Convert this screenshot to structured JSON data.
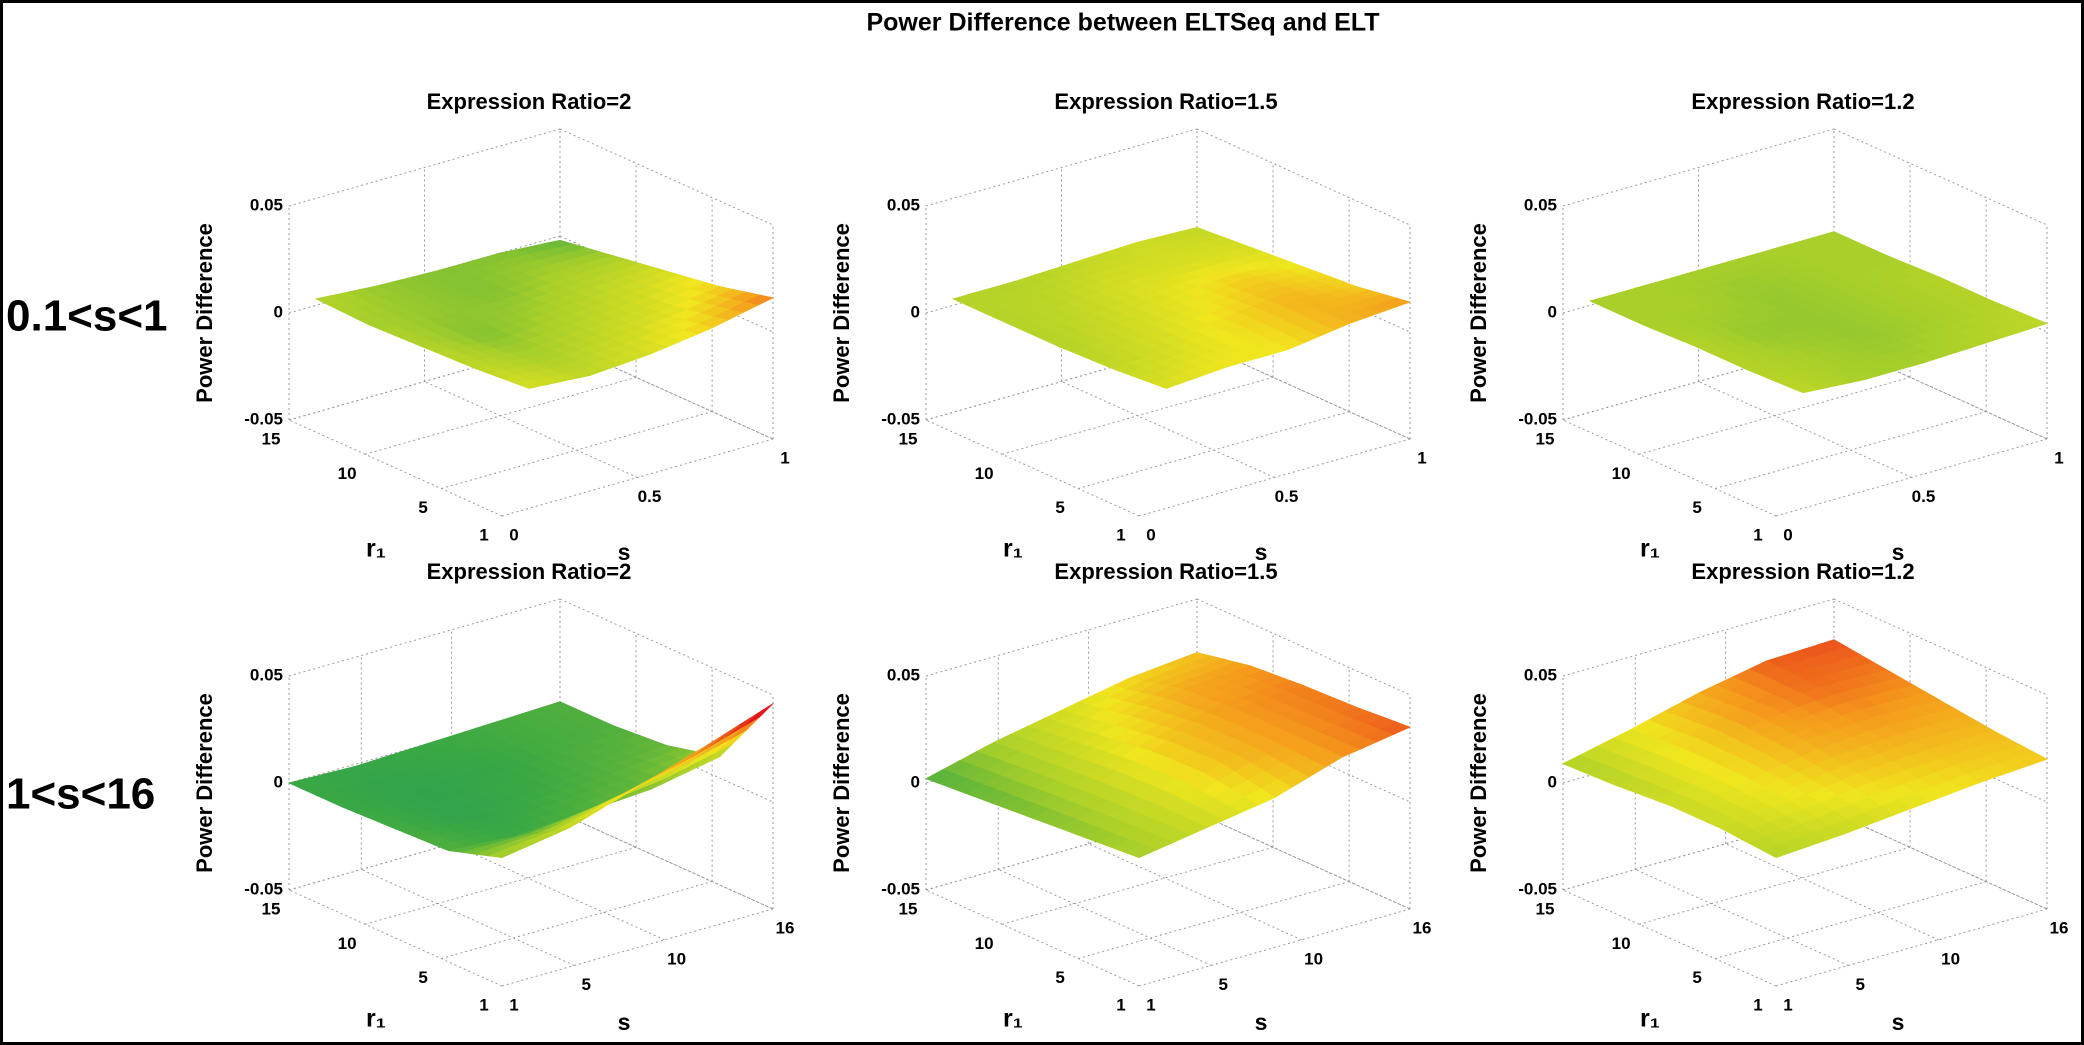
{
  "title": "Power Difference between ELTSeq and ELT",
  "row_labels": [
    "0.1<s<1",
    "1<s<16"
  ],
  "chart_data": [
    {
      "type": "surface",
      "title": "Expression Ratio=2",
      "xlabel": "s",
      "ylabel": "r₁",
      "zlabel": "Power Difference",
      "x": [
        0.1,
        0.325,
        0.55,
        0.775,
        1
      ],
      "y": [
        1,
        4.5,
        8,
        11.5,
        15
      ],
      "z": [
        [
          0.006,
          0.004,
          0.006,
          0.01,
          0.016
        ],
        [
          0.004,
          0.002,
          0.004,
          0.006,
          0.01
        ],
        [
          0.003,
          0.0,
          0.002,
          0.004,
          0.006
        ],
        [
          0.002,
          0.001,
          0.0,
          0.002,
          0.002
        ],
        [
          0.003,
          0.001,
          0.0,
          0.0,
          -0.002
        ]
      ],
      "xlim": [
        0,
        1
      ],
      "ylim": [
        1,
        15
      ],
      "zlim": [
        -0.05,
        0.05
      ],
      "xticks": [
        0,
        0.5,
        1
      ],
      "yticks": [
        1,
        5,
        10,
        15
      ],
      "zticks": [
        -0.05,
        0,
        0.05
      ],
      "grid": true,
      "colormap": [
        "#0f8f78",
        "#3aa843",
        "#a8cf2a",
        "#f0e61e",
        "#f59a1c",
        "#e5141c"
      ],
      "clim": [
        -0.01,
        0.02
      ]
    },
    {
      "type": "surface",
      "title": "Expression Ratio=1.5",
      "xlabel": "s",
      "ylabel": "r₁",
      "zlabel": "Power Difference",
      "x": [
        0.1,
        0.325,
        0.55,
        0.775,
        1
      ],
      "y": [
        1,
        4.5,
        8,
        11.5,
        15
      ],
      "z": [
        [
          0.006,
          0.008,
          0.008,
          0.012,
          0.014
        ],
        [
          0.004,
          0.006,
          0.009,
          0.012,
          0.01
        ],
        [
          0.003,
          0.005,
          0.007,
          0.01,
          0.008
        ],
        [
          0.003,
          0.004,
          0.006,
          0.006,
          0.006
        ],
        [
          0.003,
          0.003,
          0.004,
          0.005,
          0.004
        ]
      ],
      "xlim": [
        0,
        1
      ],
      "ylim": [
        1,
        15
      ],
      "zlim": [
        -0.05,
        0.05
      ],
      "xticks": [
        0,
        0.5,
        1
      ],
      "yticks": [
        1,
        5,
        10,
        15
      ],
      "zticks": [
        -0.05,
        0,
        0.05
      ],
      "grid": true,
      "colormap": [
        "#0f8f78",
        "#3aa843",
        "#a8cf2a",
        "#f0e61e",
        "#f59a1c",
        "#e5141c"
      ],
      "clim": [
        -0.01,
        0.02
      ]
    },
    {
      "type": "surface",
      "title": "Expression Ratio=1.2",
      "xlabel": "s",
      "ylabel": "r₁",
      "zlabel": "Power Difference",
      "x": [
        0.1,
        0.325,
        0.55,
        0.775,
        1
      ],
      "y": [
        1,
        4.5,
        8,
        11.5,
        15
      ],
      "z": [
        [
          0.004,
          0.002,
          0.002,
          0.003,
          0.004
        ],
        [
          0.003,
          0.002,
          0.001,
          0.002,
          0.003
        ],
        [
          0.003,
          0.001,
          0.001,
          0.002,
          0.003
        ],
        [
          0.002,
          0.002,
          0.001,
          0.002,
          0.002
        ],
        [
          0.002,
          0.002,
          0.002,
          0.002,
          0.002
        ]
      ],
      "xlim": [
        0,
        1
      ],
      "ylim": [
        1,
        15
      ],
      "zlim": [
        -0.05,
        0.05
      ],
      "xticks": [
        0,
        0.5,
        1
      ],
      "yticks": [
        1,
        5,
        10,
        15
      ],
      "zticks": [
        -0.05,
        0,
        0.05
      ],
      "grid": true,
      "colormap": [
        "#0f8f78",
        "#3aa843",
        "#a8cf2a",
        "#f0e61e",
        "#f59a1c",
        "#e5141c"
      ],
      "clim": [
        -0.01,
        0.02
      ]
    },
    {
      "type": "surface",
      "title": "Expression Ratio=2",
      "xlabel": "s",
      "ylabel": "r₁",
      "zlabel": "Power Difference",
      "x": [
        1,
        4.75,
        8.5,
        12.25,
        16
      ],
      "y": [
        1,
        4.5,
        8,
        11.5,
        15
      ],
      "z": [
        [
          0.01,
          0.015,
          0.025,
          0.035,
          0.046
        ],
        [
          0.002,
          0.0,
          0.002,
          0.004,
          0.01
        ],
        [
          0.001,
          -0.002,
          0.0,
          0.002,
          0.004
        ],
        [
          0.0,
          -0.002,
          -0.001,
          0.001,
          0.002
        ],
        [
          0.0,
          -0.001,
          0.0,
          0.001,
          0.002
        ]
      ],
      "xlim": [
        1,
        16
      ],
      "ylim": [
        1,
        15
      ],
      "zlim": [
        -0.05,
        0.05
      ],
      "xticks": [
        1,
        5,
        10,
        16
      ],
      "yticks": [
        1,
        5,
        10,
        15
      ],
      "zticks": [
        -0.05,
        0,
        0.05
      ],
      "grid": true,
      "colormap": [
        "#0f8f78",
        "#3aa843",
        "#a8cf2a",
        "#f0e61e",
        "#f59a1c",
        "#e5141c"
      ],
      "clim": [
        -0.01,
        0.04
      ]
    },
    {
      "type": "surface",
      "title": "Expression Ratio=1.5",
      "xlabel": "s",
      "ylabel": "r₁",
      "zlabel": "Power Difference",
      "x": [
        1,
        4.75,
        8.5,
        12.25,
        16
      ],
      "y": [
        1,
        4.5,
        8,
        11.5,
        15
      ],
      "z": [
        [
          0.01,
          0.015,
          0.02,
          0.03,
          0.035
        ],
        [
          0.008,
          0.015,
          0.025,
          0.03,
          0.033
        ],
        [
          0.006,
          0.014,
          0.024,
          0.03,
          0.032
        ],
        [
          0.004,
          0.012,
          0.02,
          0.028,
          0.03
        ],
        [
          0.002,
          0.01,
          0.016,
          0.022,
          0.025
        ]
      ],
      "xlim": [
        1,
        16
      ],
      "ylim": [
        1,
        15
      ],
      "zlim": [
        -0.05,
        0.05
      ],
      "xticks": [
        1,
        5,
        10,
        16
      ],
      "yticks": [
        1,
        5,
        10,
        15
      ],
      "zticks": [
        -0.05,
        0,
        0.05
      ],
      "grid": true,
      "colormap": [
        "#0f8f78",
        "#3aa843",
        "#a8cf2a",
        "#f0e61e",
        "#f59a1c",
        "#e5141c"
      ],
      "clim": [
        -0.01,
        0.04
      ]
    },
    {
      "type": "surface",
      "title": "Expression Ratio=1.2",
      "xlabel": "s",
      "ylabel": "r₁",
      "zlabel": "Power Difference",
      "x": [
        1,
        4.75,
        8.5,
        12.25,
        16
      ],
      "y": [
        1,
        4.5,
        8,
        11.5,
        15
      ],
      "z": [
        [
          0.01,
          0.012,
          0.015,
          0.018,
          0.02
        ],
        [
          0.012,
          0.016,
          0.02,
          0.022,
          0.022
        ],
        [
          0.012,
          0.018,
          0.024,
          0.026,
          0.025
        ],
        [
          0.01,
          0.018,
          0.026,
          0.029,
          0.028
        ],
        [
          0.009,
          0.016,
          0.024,
          0.03,
          0.031
        ]
      ],
      "xlim": [
        1,
        16
      ],
      "ylim": [
        1,
        15
      ],
      "zlim": [
        -0.05,
        0.05
      ],
      "xticks": [
        1,
        5,
        10,
        16
      ],
      "yticks": [
        1,
        5,
        10,
        15
      ],
      "zticks": [
        -0.05,
        0,
        0.05
      ],
      "grid": true,
      "colormap": [
        "#0f8f78",
        "#3aa843",
        "#a8cf2a",
        "#f0e61e",
        "#f59a1c",
        "#e5141c"
      ],
      "clim": [
        -0.01,
        0.035
      ]
    }
  ]
}
